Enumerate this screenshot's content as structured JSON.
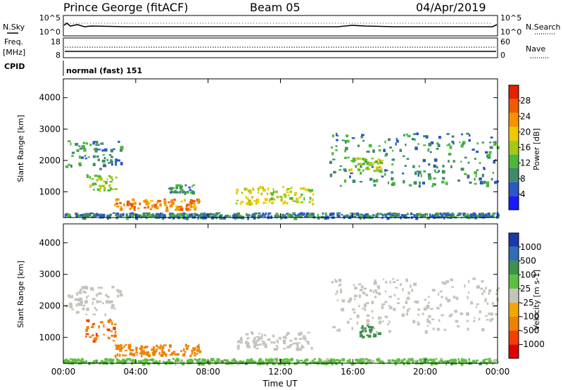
{
  "header": {
    "station": "Prince George (fitACF)",
    "beam": "Beam 05",
    "date": "04/Apr/2019"
  },
  "param_panels": {
    "nsky_label": "N.Sky",
    "nsky_ticks": [
      "10^5",
      "10^0"
    ],
    "nsearch_label": "N.Search",
    "nsearch_ticks": [
      "10^5",
      "10^0"
    ],
    "freq_label": "Freq.",
    "freq_unit": "[MHz]",
    "freq_ticks": [
      "18",
      "8"
    ],
    "nave_label": "Nave",
    "nave_ticks": [
      "60",
      "0"
    ],
    "cpid_label": "CPID",
    "cpid_value": "normal (fast) 151"
  },
  "colors": {
    "power_scale": [
      "#1a1aff",
      "#2b58c4",
      "#3f8a6a",
      "#4cb83a",
      "#a6c815",
      "#f0c800",
      "#f59300",
      "#f05a00",
      "#e62000"
    ],
    "velocity_scale": [
      "#1a3aaa",
      "#2f6db8",
      "#3f8f4e",
      "#5ec040",
      "#c4c4bc",
      "#f0a800",
      "#f08000",
      "#f04000",
      "#e00000"
    ]
  },
  "chart_data": [
    {
      "type": "heatmap",
      "title": "",
      "xlabel": "",
      "ylabel": "Slant Range [km]",
      "x_range_hours_ut": [
        0,
        24
      ],
      "ylim_km": [
        180,
        4600
      ],
      "y_ticks": [
        "1000",
        "2000",
        "3000",
        "4000"
      ],
      "colorbar": {
        "label": "Power [dB]",
        "range": [
          0,
          32
        ],
        "ticks": [
          "4",
          "8",
          "12",
          "16",
          "20",
          "24",
          "28"
        ]
      },
      "echo_regions": [
        {
          "t_start_h": 0.1,
          "t_end_h": 3.2,
          "range_start_km": 1750,
          "range_end_km": 2650,
          "value": 9
        },
        {
          "t_start_h": 1.2,
          "t_end_h": 2.9,
          "range_start_km": 1050,
          "range_end_km": 1600,
          "value": 15
        },
        {
          "t_start_h": 2.8,
          "t_end_h": 7.5,
          "range_start_km": 450,
          "range_end_km": 800,
          "value": 24
        },
        {
          "t_start_h": 5.8,
          "t_end_h": 7.2,
          "range_start_km": 1000,
          "range_end_km": 1250,
          "value": 10
        },
        {
          "t_start_h": 9.5,
          "t_end_h": 13.8,
          "range_start_km": 650,
          "range_end_km": 1200,
          "value": 17
        },
        {
          "t_start_h": 14.7,
          "t_end_h": 24.0,
          "range_start_km": 1200,
          "range_end_km": 2900,
          "value": 9
        },
        {
          "t_start_h": 15.8,
          "t_end_h": 17.6,
          "range_start_km": 1700,
          "range_end_km": 2100,
          "value": 15
        },
        {
          "t_start_h": 0.0,
          "t_end_h": 24.0,
          "range_start_km": 200,
          "range_end_km": 350,
          "value": 8
        }
      ]
    },
    {
      "type": "heatmap",
      "title": "",
      "xlabel": "Time UT",
      "ylabel": "Slant Range [km]",
      "x_range_hours_ut": [
        0,
        24
      ],
      "x_ticks": [
        "00:00",
        "04:00",
        "08:00",
        "12:00",
        "16:00",
        "20:00",
        "00:00"
      ],
      "ylim_km": [
        180,
        4600
      ],
      "y_ticks": [
        "1000",
        "2000",
        "3000",
        "4000"
      ],
      "colorbar": {
        "label": "Velocity [m s-1]",
        "ticks": [
          "1000",
          "500",
          "100",
          "25",
          "-25",
          "-100",
          "-500",
          "-1000"
        ]
      },
      "echo_regions": [
        {
          "t_start_h": 0.1,
          "t_end_h": 3.2,
          "range_start_km": 1750,
          "range_end_km": 2650,
          "value": 0
        },
        {
          "t_start_h": 1.2,
          "t_end_h": 2.9,
          "range_start_km": 900,
          "range_end_km": 1600,
          "value": -400
        },
        {
          "t_start_h": 2.8,
          "t_end_h": 7.5,
          "range_start_km": 450,
          "range_end_km": 800,
          "value": -200
        },
        {
          "t_start_h": 9.5,
          "t_end_h": 13.8,
          "range_start_km": 650,
          "range_end_km": 1200,
          "value": 0
        },
        {
          "t_start_h": 14.7,
          "t_end_h": 24.0,
          "range_start_km": 1200,
          "range_end_km": 2900,
          "value": 0
        },
        {
          "t_start_h": 16.3,
          "t_end_h": 17.4,
          "range_start_km": 1050,
          "range_end_km": 1400,
          "value": 200
        },
        {
          "t_start_h": 0.0,
          "t_end_h": 24.0,
          "range_start_km": 200,
          "range_end_km": 350,
          "value": 60
        }
      ]
    }
  ]
}
